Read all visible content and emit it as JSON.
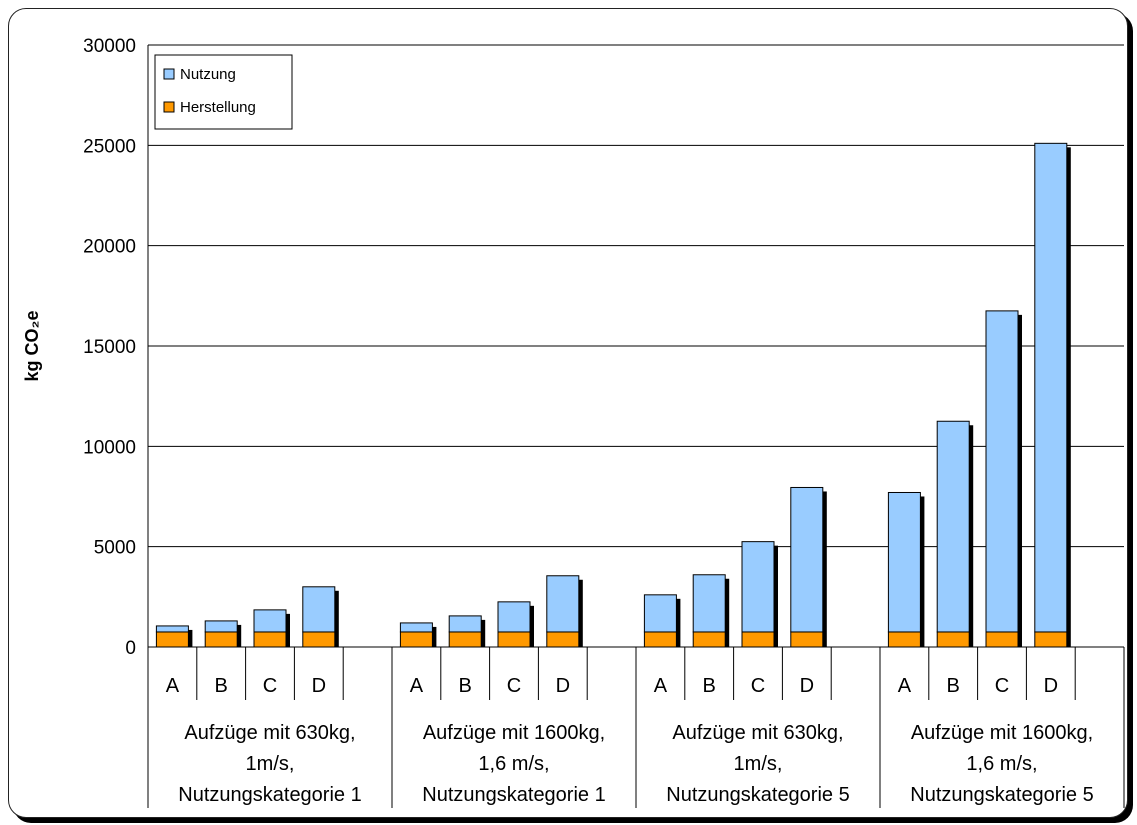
{
  "chart_data": {
    "type": "bar",
    "stacked": true,
    "ylabel": "kg CO₂e",
    "ylim": [
      0,
      30000
    ],
    "yticks": [
      "0",
      "5000",
      "10000",
      "15000",
      "20000",
      "25000",
      "30000"
    ],
    "grid": true,
    "legend_position": "top-left",
    "groups": [
      {
        "label_lines": [
          "Aufzüge mit 630kg,",
          "1m/s,",
          "Nutzungskategorie 1"
        ],
        "categories": [
          "A",
          "B",
          "C",
          "D"
        ]
      },
      {
        "label_lines": [
          "Aufzüge mit 1600kg,",
          "1,6 m/s,",
          "Nutzungskategorie 1"
        ],
        "categories": [
          "A",
          "B",
          "C",
          "D"
        ]
      },
      {
        "label_lines": [
          "Aufzüge mit 630kg,",
          "1m/s,",
          "Nutzungskategorie 5"
        ],
        "categories": [
          "A",
          "B",
          "C",
          "D"
        ]
      },
      {
        "label_lines": [
          "Aufzüge mit 1600kg,",
          "1,6 m/s,",
          "Nutzungskategorie 5"
        ],
        "categories": [
          "A",
          "B",
          "C",
          "D"
        ]
      }
    ],
    "series": [
      {
        "name": "Herstellung",
        "color": "#ff9900",
        "values": [
          750,
          750,
          750,
          750,
          750,
          750,
          750,
          750,
          750,
          750,
          750,
          750,
          750,
          750,
          750,
          750
        ]
      },
      {
        "name": "Nutzung",
        "color": "#99ccff",
        "values": [
          300,
          550,
          1100,
          2250,
          450,
          800,
          1500,
          2800,
          1850,
          2850,
          4500,
          7200,
          6950,
          10500,
          16000,
          24350
        ]
      }
    ]
  }
}
